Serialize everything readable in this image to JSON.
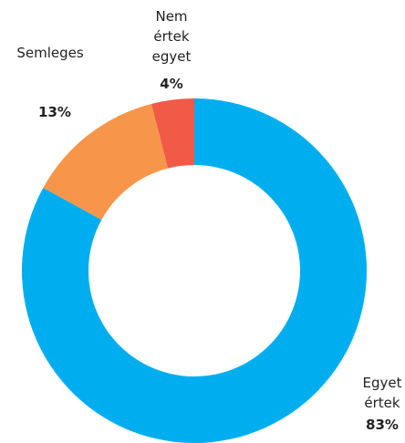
{
  "chart_data": {
    "type": "donut",
    "categories": [
      "Egyet értek",
      "Semleges",
      "Nem értek egyet"
    ],
    "values": [
      83,
      13,
      4
    ],
    "value_labels": [
      "83%",
      "13%",
      "4%"
    ],
    "colors": [
      "#00aeef",
      "#f7964a",
      "#f05a46"
    ]
  }
}
